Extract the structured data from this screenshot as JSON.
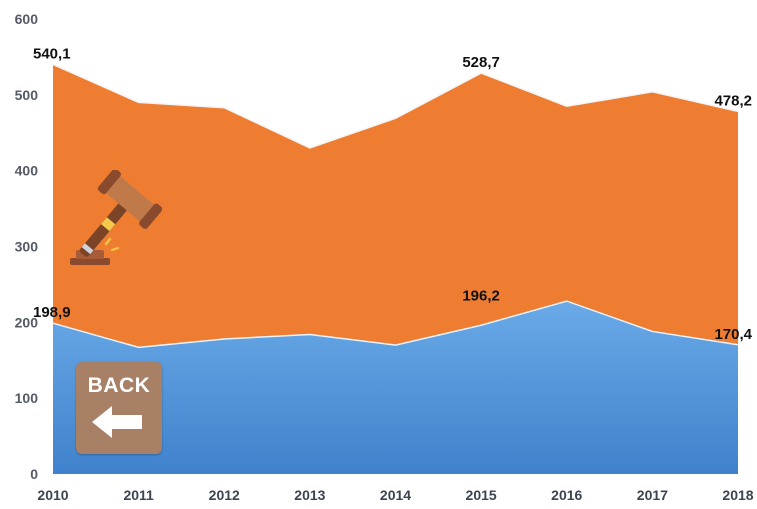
{
  "chart_data": {
    "type": "area",
    "stacked": true,
    "x": [
      2010,
      2011,
      2012,
      2013,
      2014,
      2015,
      2016,
      2017,
      2018
    ],
    "series": [
      {
        "values": [
          198.9,
          167,
          178,
          184,
          170,
          196.2,
          228,
          188,
          170.4
        ],
        "color": "#4e8fd6"
      },
      {
        "values": [
          341.2,
          323,
          305,
          246,
          299,
          332.5,
          257,
          316,
          307.8
        ],
        "color": "#ee7d31"
      }
    ],
    "totals": [
      540.1,
      490,
      483,
      430,
      469,
      528.7,
      485,
      504,
      478.2
    ],
    "ylim": [
      0,
      600
    ],
    "yticks": [
      0,
      100,
      200,
      300,
      400,
      500,
      600
    ],
    "xticks": [
      "2010",
      "2011",
      "2012",
      "2013",
      "2014",
      "2015",
      "2016",
      "2017",
      "2018"
    ],
    "data_labels": {
      "lower": [
        {
          "index": 0,
          "text": "198,9"
        },
        {
          "index": 5,
          "text": "196,2"
        },
        {
          "index": 8,
          "text": "170,4"
        }
      ],
      "upper": [
        {
          "index": 0,
          "text": "540,1"
        },
        {
          "index": 5,
          "text": "528,7"
        },
        {
          "index": 8,
          "text": "478,2"
        }
      ]
    },
    "grid": false
  },
  "back_button": {
    "label": "BACK"
  },
  "icons": {
    "gavel": "gavel-icon",
    "back_arrow": "arrow-left-icon"
  }
}
